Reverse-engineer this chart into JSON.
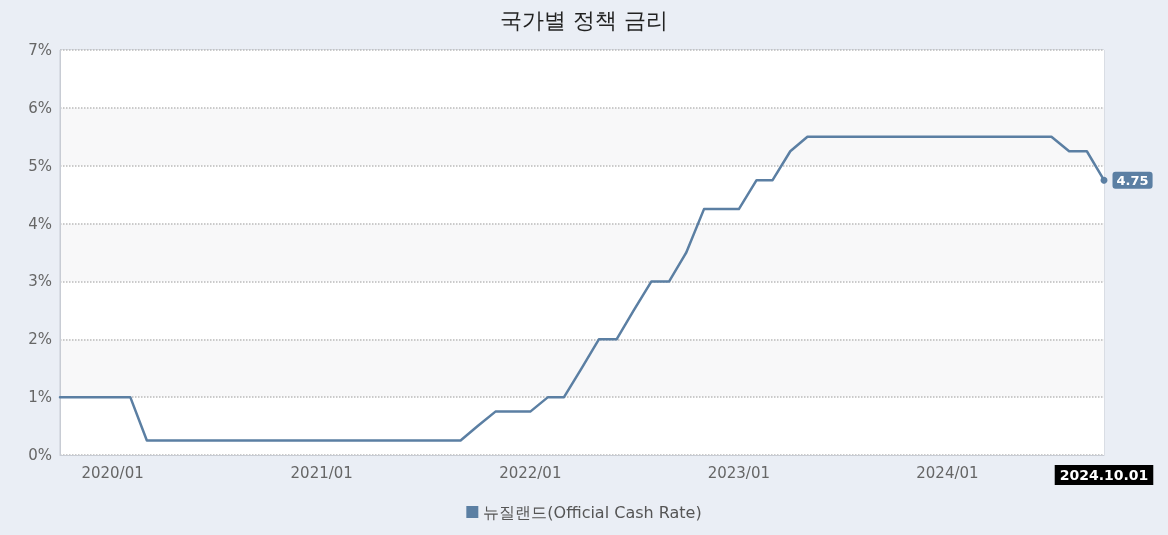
{
  "chart_data": {
    "type": "line",
    "title": "국가별 정책 금리",
    "x": [
      "2019-10-01",
      "2020-02-01",
      "2020-03-01",
      "2021-09-01",
      "2021-10-01",
      "2021-11-01",
      "2022-01-01",
      "2022-02-01",
      "2022-03-01",
      "2022-04-01",
      "2022-05-01",
      "2022-06-01",
      "2022-07-01",
      "2022-08-01",
      "2022-09-01",
      "2022-10-01",
      "2022-11-01",
      "2023-01-01",
      "2023-02-01",
      "2023-03-01",
      "2023-04-01",
      "2023-05-01",
      "2024-07-01",
      "2024-08-01",
      "2024-09-01",
      "2024-10-01"
    ],
    "series": [
      {
        "name": "뉴질랜드(Official Cash Rate)",
        "color": "#5b7fa3",
        "values": [
          1.0,
          1.0,
          0.25,
          0.25,
          0.5,
          0.75,
          0.75,
          1.0,
          1.0,
          1.5,
          2.0,
          2.0,
          2.5,
          3.0,
          3.0,
          3.5,
          4.25,
          4.25,
          4.75,
          4.75,
          5.25,
          5.5,
          5.5,
          5.25,
          5.25,
          4.75
        ],
        "value_labels": [
          null,
          null,
          null,
          null,
          null,
          null,
          null,
          null,
          null,
          null,
          null,
          null,
          null,
          null,
          null,
          null,
          null,
          null,
          null,
          null,
          null,
          null,
          null,
          null,
          null,
          "4.75"
        ]
      }
    ],
    "xlim": [
      "2019-10-01",
      "2024-10-01"
    ],
    "xticks": [
      {
        "value": "2020-01-01",
        "label": "2020/01"
      },
      {
        "value": "2021-01-01",
        "label": "2021/01"
      },
      {
        "value": "2022-01-01",
        "label": "2022/01"
      },
      {
        "value": "2023-01-01",
        "label": "2023/01"
      },
      {
        "value": "2024-01-01",
        "label": "2024/01"
      },
      {
        "value": "2024-10-01",
        "label": "2024.10.01"
      }
    ],
    "ylim": [
      0,
      7
    ],
    "yticks": [
      {
        "value": 0,
        "label": "0%"
      },
      {
        "value": 1,
        "label": "1%"
      },
      {
        "value": 2,
        "label": "2%"
      },
      {
        "value": 3,
        "label": "3%"
      },
      {
        "value": 4,
        "label": "4%"
      },
      {
        "value": 5,
        "label": "5%"
      },
      {
        "value": 6,
        "label": "6%"
      },
      {
        "value": 7,
        "label": "7%"
      }
    ],
    "grid": "y",
    "legend": "bottom",
    "marker": "none",
    "line_style": "solid"
  }
}
